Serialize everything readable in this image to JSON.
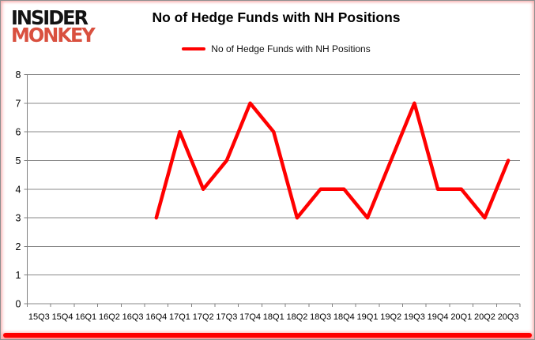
{
  "logo": {
    "line1": "INSIDER",
    "line2": "MONKEY"
  },
  "header": {
    "title": "No of Hedge Funds with NH Positions"
  },
  "legend": {
    "label": "No of Hedge Funds with NH Positions"
  },
  "colors": {
    "series_line": "#ff0000",
    "gridline": "#888888",
    "axis": "#808080",
    "tick_label": "#000000",
    "logo_black": "#131313",
    "logo_red": "#d9503f",
    "frame_bottom_bar": "#ff0000"
  },
  "chart_data": {
    "type": "line",
    "title": "No of Hedge Funds with NH Positions",
    "categories": [
      "15Q3",
      "15Q4",
      "16Q1",
      "16Q2",
      "16Q3",
      "16Q4",
      "17Q1",
      "17Q2",
      "17Q3",
      "17Q4",
      "18Q1",
      "18Q2",
      "18Q3",
      "18Q4",
      "19Q1",
      "19Q2",
      "19Q3",
      "19Q4",
      "20Q1",
      "20Q2",
      "20Q3"
    ],
    "series": [
      {
        "name": "No of Hedge Funds with NH Positions",
        "color": "#ff0000",
        "values": [
          null,
          null,
          null,
          null,
          null,
          3,
          6,
          4,
          5,
          7,
          6,
          3,
          4,
          4,
          3,
          5,
          7,
          4,
          4,
          3,
          5
        ]
      }
    ],
    "xlabel": "",
    "ylabel": "",
    "ylim": [
      0,
      8
    ],
    "yticks": [
      0,
      1,
      2,
      3,
      4,
      5,
      6,
      7,
      8
    ],
    "grid": true,
    "legend_position": "top-center"
  }
}
